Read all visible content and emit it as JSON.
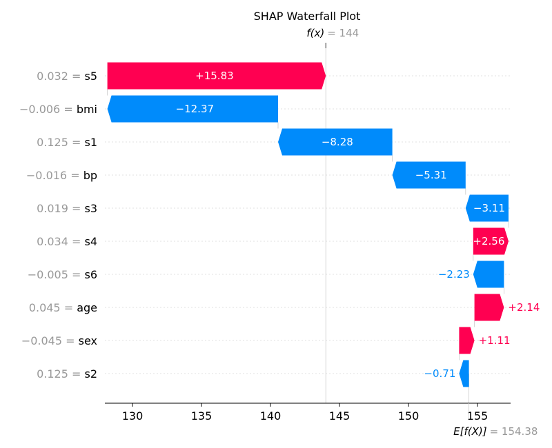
{
  "chart_data": {
    "type": "bar",
    "title": "SHAP Waterfall Plot",
    "fx": {
      "label": "f(x)",
      "value": "144"
    },
    "expected": {
      "label": "E[f(X)]",
      "value": "154.38",
      "numeric": 154.38
    },
    "xlim": [
      128,
      157.4
    ],
    "xticks": [
      130,
      135,
      140,
      145,
      150,
      155
    ],
    "rows": [
      {
        "value_label": "0.032",
        "feature": "s5",
        "shap": 15.83,
        "label": "+15.83",
        "label_inside": true
      },
      {
        "value_label": "−0.006",
        "feature": "bmi",
        "shap": -12.37,
        "label": "−12.37",
        "label_inside": true
      },
      {
        "value_label": "0.125",
        "feature": "s1",
        "shap": -8.28,
        "label": "−8.28",
        "label_inside": true
      },
      {
        "value_label": "−0.016",
        "feature": "bp",
        "shap": -5.31,
        "label": "−5.31",
        "label_inside": true
      },
      {
        "value_label": "0.019",
        "feature": "s3",
        "shap": -3.11,
        "label": "−3.11",
        "label_inside": true
      },
      {
        "value_label": "0.034",
        "feature": "s4",
        "shap": 2.56,
        "label": "+2.56",
        "label_inside": true
      },
      {
        "value_label": "−0.005",
        "feature": "s6",
        "shap": -2.23,
        "label": "−2.23",
        "label_inside": false
      },
      {
        "value_label": "0.045",
        "feature": "age",
        "shap": 2.14,
        "label": "+2.14",
        "label_inside": false
      },
      {
        "value_label": "−0.045",
        "feature": "sex",
        "shap": 1.11,
        "label": "+1.11",
        "label_inside": false
      },
      {
        "value_label": "0.125",
        "feature": "s2",
        "shap": -0.71,
        "label": "−0.71",
        "label_inside": false
      }
    ],
    "colors": {
      "positive": "#ff0051",
      "negative": "#008bfb",
      "muted": "#999999"
    }
  }
}
